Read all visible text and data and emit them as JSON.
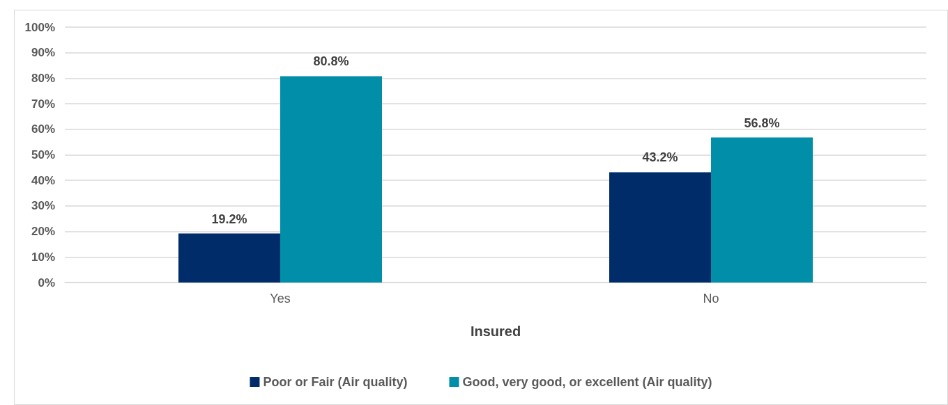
{
  "chart_data": {
    "type": "bar",
    "xlabel": "Insured",
    "categories": [
      "Yes",
      "No"
    ],
    "series": [
      {
        "name": "Poor or Fair (Air quality)",
        "color": "#002d6a",
        "values": [
          19.2,
          43.2
        ],
        "value_labels": [
          "19.2%",
          "43.2%"
        ]
      },
      {
        "name": "Good, very good, or excellent (Air quality)",
        "color": "#008ea8",
        "values": [
          80.8,
          56.8
        ],
        "value_labels": [
          "80.8%",
          "56.8%"
        ]
      }
    ],
    "ylim": [
      0,
      100
    ],
    "yticks": [
      {
        "value": 0,
        "label": "0%"
      },
      {
        "value": 10,
        "label": "10%"
      },
      {
        "value": 20,
        "label": "20%"
      },
      {
        "value": 30,
        "label": "30%"
      },
      {
        "value": 40,
        "label": "40%"
      },
      {
        "value": 50,
        "label": "50%"
      },
      {
        "value": 60,
        "label": "60%"
      },
      {
        "value": 70,
        "label": "70%"
      },
      {
        "value": 80,
        "label": "80%"
      },
      {
        "value": 90,
        "label": "90%"
      },
      {
        "value": 100,
        "label": "100%"
      }
    ],
    "grid": "y",
    "legend": "bottom"
  }
}
